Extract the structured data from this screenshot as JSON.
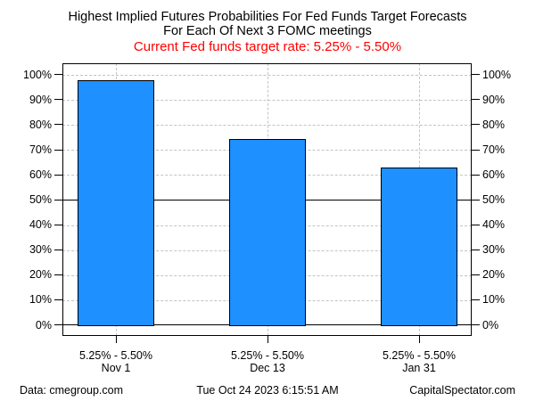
{
  "title": {
    "line1": "Highest Implied Futures Probabilities For Fed Funds Target Forecasts",
    "line2": "For Each Of Next 3 FOMC meetings",
    "subtitle": "Current Fed funds target rate: 5.25% - 5.50%"
  },
  "colors": {
    "subtitle_text": "#ff0000",
    "bar_fill": "#1e90ff",
    "bar_border": "#000000",
    "grid": "#c3c3c3",
    "axis": "#000000"
  },
  "chart_data": {
    "type": "bar",
    "title": "Highest Implied Futures Probabilities For Fed Funds Target Forecasts For Each Of Next 3 FOMC meetings",
    "subtitle": "Current Fed funds target rate: 5.25% - 5.50%",
    "categories": [
      "Nov 1",
      "Dec 13",
      "Jan 31"
    ],
    "category_range_labels": [
      "5.25% - 5.50%",
      "5.25% - 5.50%",
      "5.25% - 5.50%"
    ],
    "values": [
      98,
      74.5,
      63
    ],
    "ylim": [
      0,
      100
    ],
    "ytick_step": 10,
    "ytick_labels": [
      "0%",
      "10%",
      "20%",
      "30%",
      "40%",
      "50%",
      "60%",
      "70%",
      "80%",
      "90%",
      "100%"
    ],
    "y_axis_sides": "left-and-right",
    "solid_hlines": [
      0,
      50
    ],
    "grid": "dashed horizontal gridlines every 10% and dashed vertical gridline at each bar center",
    "legend": "none"
  },
  "footer": {
    "left": "Data: cmegroup.com",
    "center": "Tue Oct 24 2023 6:15:51 AM",
    "right": "CapitalSpectator.com"
  }
}
